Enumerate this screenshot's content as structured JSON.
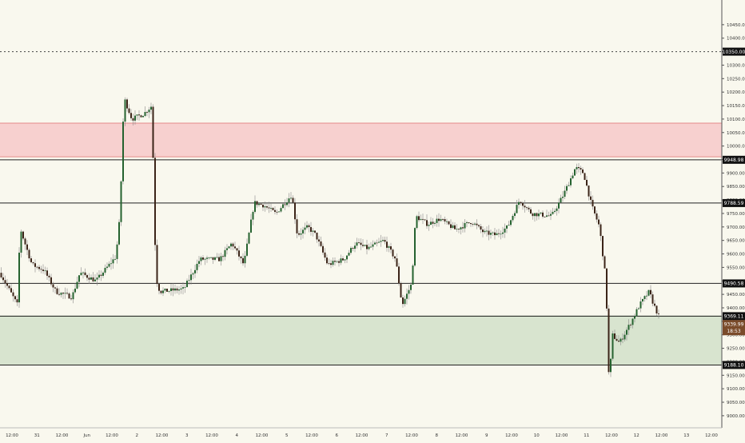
{
  "chart_data": {
    "type": "candlestick",
    "y_axis": {
      "ylim": [
        8970,
        10500
      ],
      "ticks": [
        9000,
        9050,
        9100,
        9150,
        9200,
        9250,
        9300,
        9350,
        9400,
        9450,
        9500,
        9550,
        9600,
        9650,
        9700,
        9750,
        9800,
        9850,
        9900,
        9950,
        10000,
        10050,
        10100,
        10150,
        10200,
        10250,
        10300,
        10350,
        10400,
        10450
      ],
      "tick_labels": [
        "9000.00",
        "9050.00",
        "9100.00",
        "9150.00",
        "9200.00",
        "9250.00",
        "9300.00",
        "9350.00",
        "9400.00",
        "9450.00",
        "9500.00",
        "9550.00",
        "9600.00",
        "9650.00",
        "9700.00",
        "9750.00",
        "9800.00",
        "9850.00",
        "9900.00",
        "9950.00",
        "10000.00",
        "10050.00",
        "10100.00",
        "10150.00",
        "10200.00",
        "10250.00",
        "10300.00",
        "10350.00",
        "10400.00",
        "10450.00"
      ]
    },
    "x_axis": {
      "tick_labels": [
        "12:00",
        "31",
        "12:00",
        "Jun",
        "12:00",
        "2",
        "12:00",
        "3",
        "12:00",
        "4",
        "12:00",
        "5",
        "12:00",
        "6",
        "12:00",
        "7",
        "12:00",
        "8",
        "12:00",
        "9",
        "12:00",
        "10",
        "12:00",
        "11",
        "12:00",
        "12",
        "12:00",
        "13",
        "12:00"
      ]
    },
    "levels": [
      {
        "value": 10350,
        "label": "10350.00",
        "style": "dotted"
      },
      {
        "value": 9948.98,
        "label": "9948.98",
        "style": "solid"
      },
      {
        "value": 9788.59,
        "label": "9788.59",
        "style": "solid"
      },
      {
        "value": 9490.58,
        "label": "9490.58",
        "style": "solid"
      },
      {
        "value": 9369.11,
        "label": "9369.11",
        "style": "solid"
      },
      {
        "value": 9188.1,
        "label": "9188.10",
        "style": "solid"
      }
    ],
    "zones": [
      {
        "from": 9960,
        "to": 10085,
        "color": "#f7d0cf",
        "border": "#e58a8a"
      },
      {
        "from": 9188.1,
        "to": 9369.11,
        "color": "#d8e4cf",
        "border": "#9cb690"
      }
    ],
    "price_tag": {
      "value": 9339.99,
      "label": "9339.99",
      "countdown": "18:53"
    },
    "colors": {
      "up": "#25622f",
      "down": "#3b2418",
      "wick": "#888888",
      "price_tag": "#7a4b2a",
      "background": "#f9f8ee"
    },
    "series": [
      {
        "name": "",
        "knots": [
          [
            0,
            9530
          ],
          [
            22,
            9410
          ],
          [
            25,
            9700
          ],
          [
            30,
            9650
          ],
          [
            40,
            9560
          ],
          [
            55,
            9540
          ],
          [
            70,
            9460
          ],
          [
            90,
            9440
          ],
          [
            100,
            9530
          ],
          [
            120,
            9500
          ],
          [
            145,
            9590
          ],
          [
            150,
            9740
          ],
          [
            153,
            10000
          ],
          [
            155,
            10180
          ],
          [
            165,
            10100
          ],
          [
            180,
            10120
          ],
          [
            190,
            10150
          ],
          [
            195,
            9510
          ],
          [
            200,
            9460
          ],
          [
            230,
            9470
          ],
          [
            250,
            9580
          ],
          [
            275,
            9580
          ],
          [
            290,
            9640
          ],
          [
            305,
            9560
          ],
          [
            318,
            9790
          ],
          [
            330,
            9780
          ],
          [
            345,
            9750
          ],
          [
            365,
            9820
          ],
          [
            372,
            9670
          ],
          [
            385,
            9700
          ],
          [
            395,
            9670
          ],
          [
            410,
            9560
          ],
          [
            430,
            9580
          ],
          [
            445,
            9640
          ],
          [
            460,
            9620
          ],
          [
            480,
            9650
          ],
          [
            495,
            9580
          ],
          [
            503,
            9410
          ],
          [
            515,
            9490
          ],
          [
            520,
            9740
          ],
          [
            535,
            9710
          ],
          [
            550,
            9730
          ],
          [
            570,
            9690
          ],
          [
            590,
            9720
          ],
          [
            605,
            9680
          ],
          [
            620,
            9670
          ],
          [
            635,
            9700
          ],
          [
            650,
            9800
          ],
          [
            665,
            9750
          ],
          [
            690,
            9740
          ],
          [
            705,
            9820
          ],
          [
            720,
            9920
          ],
          [
            730,
            9900
          ],
          [
            740,
            9780
          ],
          [
            750,
            9700
          ],
          [
            758,
            9500
          ],
          [
            762,
            9110
          ],
          [
            766,
            9300
          ],
          [
            775,
            9270
          ],
          [
            790,
            9350
          ],
          [
            800,
            9410
          ],
          [
            812,
            9460
          ],
          [
            818,
            9410
          ],
          [
            824,
            9370
          ]
        ]
      }
    ]
  }
}
